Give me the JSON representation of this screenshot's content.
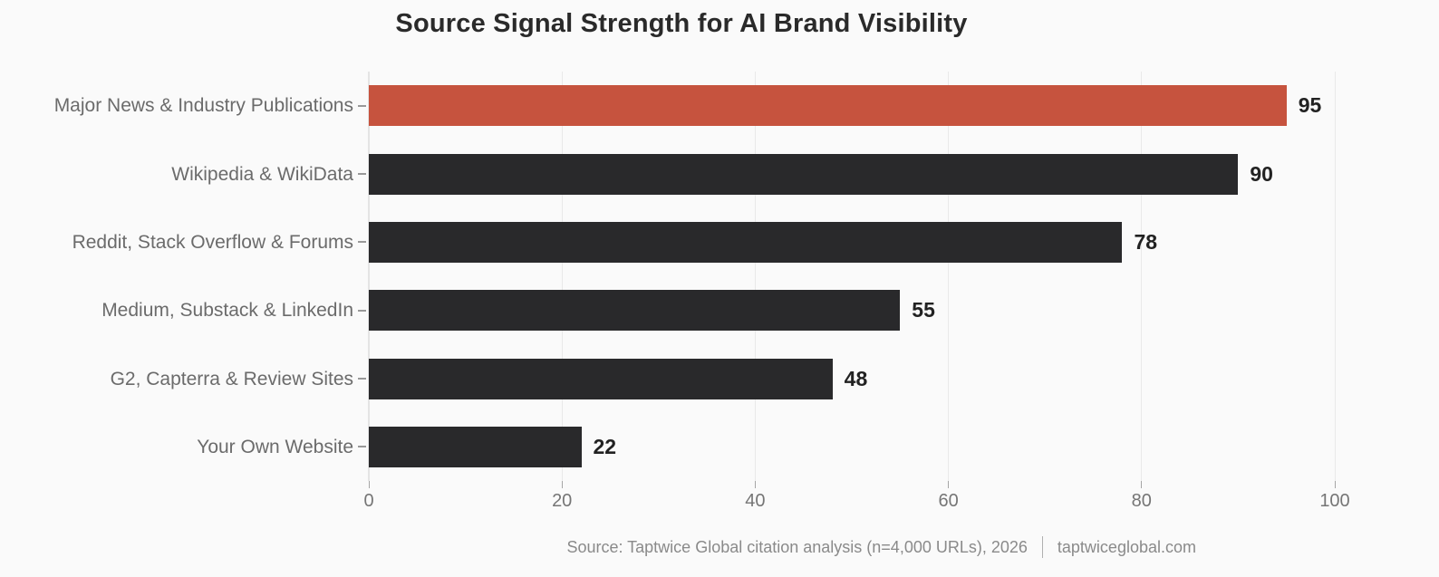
{
  "title": "Source Signal Strength for AI Brand Visibility",
  "source": {
    "text": "Source: Taptwice Global citation analysis (n=4,000 URLs), 2026",
    "site": "taptwiceglobal.com"
  },
  "colors": {
    "background": "#fafafa",
    "highlight_bar": "#c6533e",
    "default_bar": "#29292b",
    "grid": "#e9e9e9",
    "tick": "#a6a6a6",
    "category_label": "#6b6b6b",
    "axis_tick_label": "#757575",
    "value_label": "#222222",
    "title": "#2a2a2a",
    "source_text": "#8a8a8a"
  },
  "chart_data": {
    "type": "bar",
    "orientation": "horizontal",
    "title": "Source Signal Strength for AI Brand Visibility",
    "categories": [
      "Major News & Industry Publications",
      "Wikipedia & WikiData",
      "Reddit, Stack Overflow & Forums",
      "Medium, Substack & LinkedIn",
      "G2, Capterra & Review Sites",
      "Your Own Website"
    ],
    "values": [
      95,
      90,
      78,
      55,
      48,
      22
    ],
    "bar_colors": [
      "#c6533e",
      "#29292b",
      "#29292b",
      "#29292b",
      "#29292b",
      "#29292b"
    ],
    "data_labels": [
      "95",
      "90",
      "78",
      "55",
      "48",
      "22"
    ],
    "xlabel": "",
    "ylabel": "",
    "xlim": [
      0,
      100
    ],
    "x_ticks": [
      0,
      20,
      40,
      60,
      80,
      100
    ],
    "x_tick_labels": [
      "0",
      "20",
      "40",
      "60",
      "80",
      "100"
    ],
    "grid": true,
    "legend": false
  }
}
